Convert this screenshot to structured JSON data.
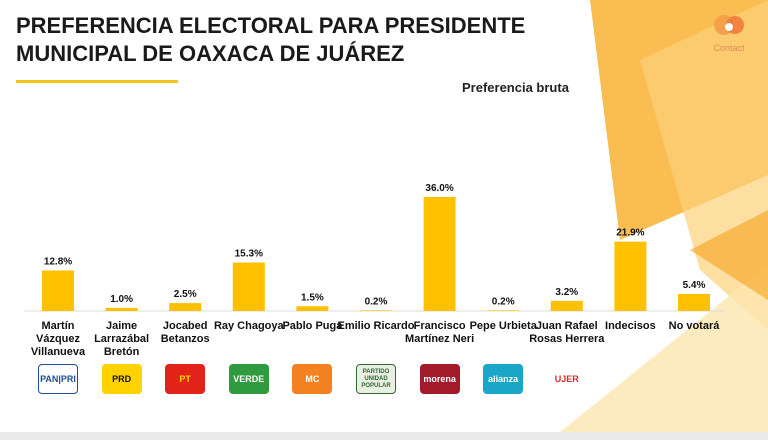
{
  "header": {
    "title": "PREFERENCIA ELECTORAL PARA PRESIDENTE MUNICIPAL DE OAXACA DE JUÁREZ",
    "subtitle": "Preferencia bruta",
    "brand": "Contact"
  },
  "colors": {
    "bar": "#ffc000",
    "accent": "#f5c518",
    "deco": "#f9b233"
  },
  "chart_data": {
    "type": "bar",
    "title": "PREFERENCIA ELECTORAL PARA PRESIDENTE MUNICIPAL DE OAXACA DE JUÁREZ",
    "subtitle": "Preferencia bruta",
    "categories": [
      "Martín Vázquez Villanueva",
      "Jaime Larrazábal Bretón",
      "Jocabed Betanzos",
      "Ray Chagoya",
      "Pablo Puga",
      "Emilio Ricardo",
      "Francisco Martínez Neri",
      "Pepe Urbieta",
      "Juan Rafael Rosas Herrera",
      "Indecisos",
      "No votará"
    ],
    "values": [
      12.8,
      1.0,
      2.5,
      15.3,
      1.5,
      0.2,
      36.0,
      0.2,
      3.2,
      21.9,
      5.4
    ],
    "value_labels": [
      "12.8%",
      "1.0%",
      "2.5%",
      "15.3%",
      "1.5%",
      "0.2%",
      "36.0%",
      "0.2%",
      "3.2%",
      "21.9%",
      "5.4%"
    ],
    "xlabel": "",
    "ylabel": "",
    "ylim": [
      0,
      36
    ],
    "grid": false,
    "legend": "none"
  },
  "parties": [
    {
      "label": "PAN|PRI",
      "bg": "#ffffff",
      "fg": "#1f4e9b",
      "border": "#1f4e9b"
    },
    {
      "label": "PRD",
      "bg": "#ffd200",
      "fg": "#111111",
      "border": ""
    },
    {
      "label": "PT",
      "bg": "#e2231a",
      "fg": "#ffd200",
      "border": ""
    },
    {
      "label": "VERDE",
      "bg": "#2e9b3e",
      "fg": "#ffffff",
      "border": ""
    },
    {
      "label": "MC",
      "bg": "#f58220",
      "fg": "#ffffff",
      "border": ""
    },
    {
      "label": "PARTIDO UNIDAD POPULAR",
      "bg": "#e9efe3",
      "fg": "#2f6a2f",
      "border": "#2f6a2f"
    },
    {
      "label": "morena",
      "bg": "#a31a2b",
      "fg": "#ffffff",
      "border": ""
    },
    {
      "label": "alianza",
      "bg": "#1aa6c8",
      "fg": "#ffffff",
      "border": ""
    },
    {
      "label": "UJER",
      "bg": "#ffffff",
      "fg": "#d62b2b",
      "border": ""
    }
  ]
}
